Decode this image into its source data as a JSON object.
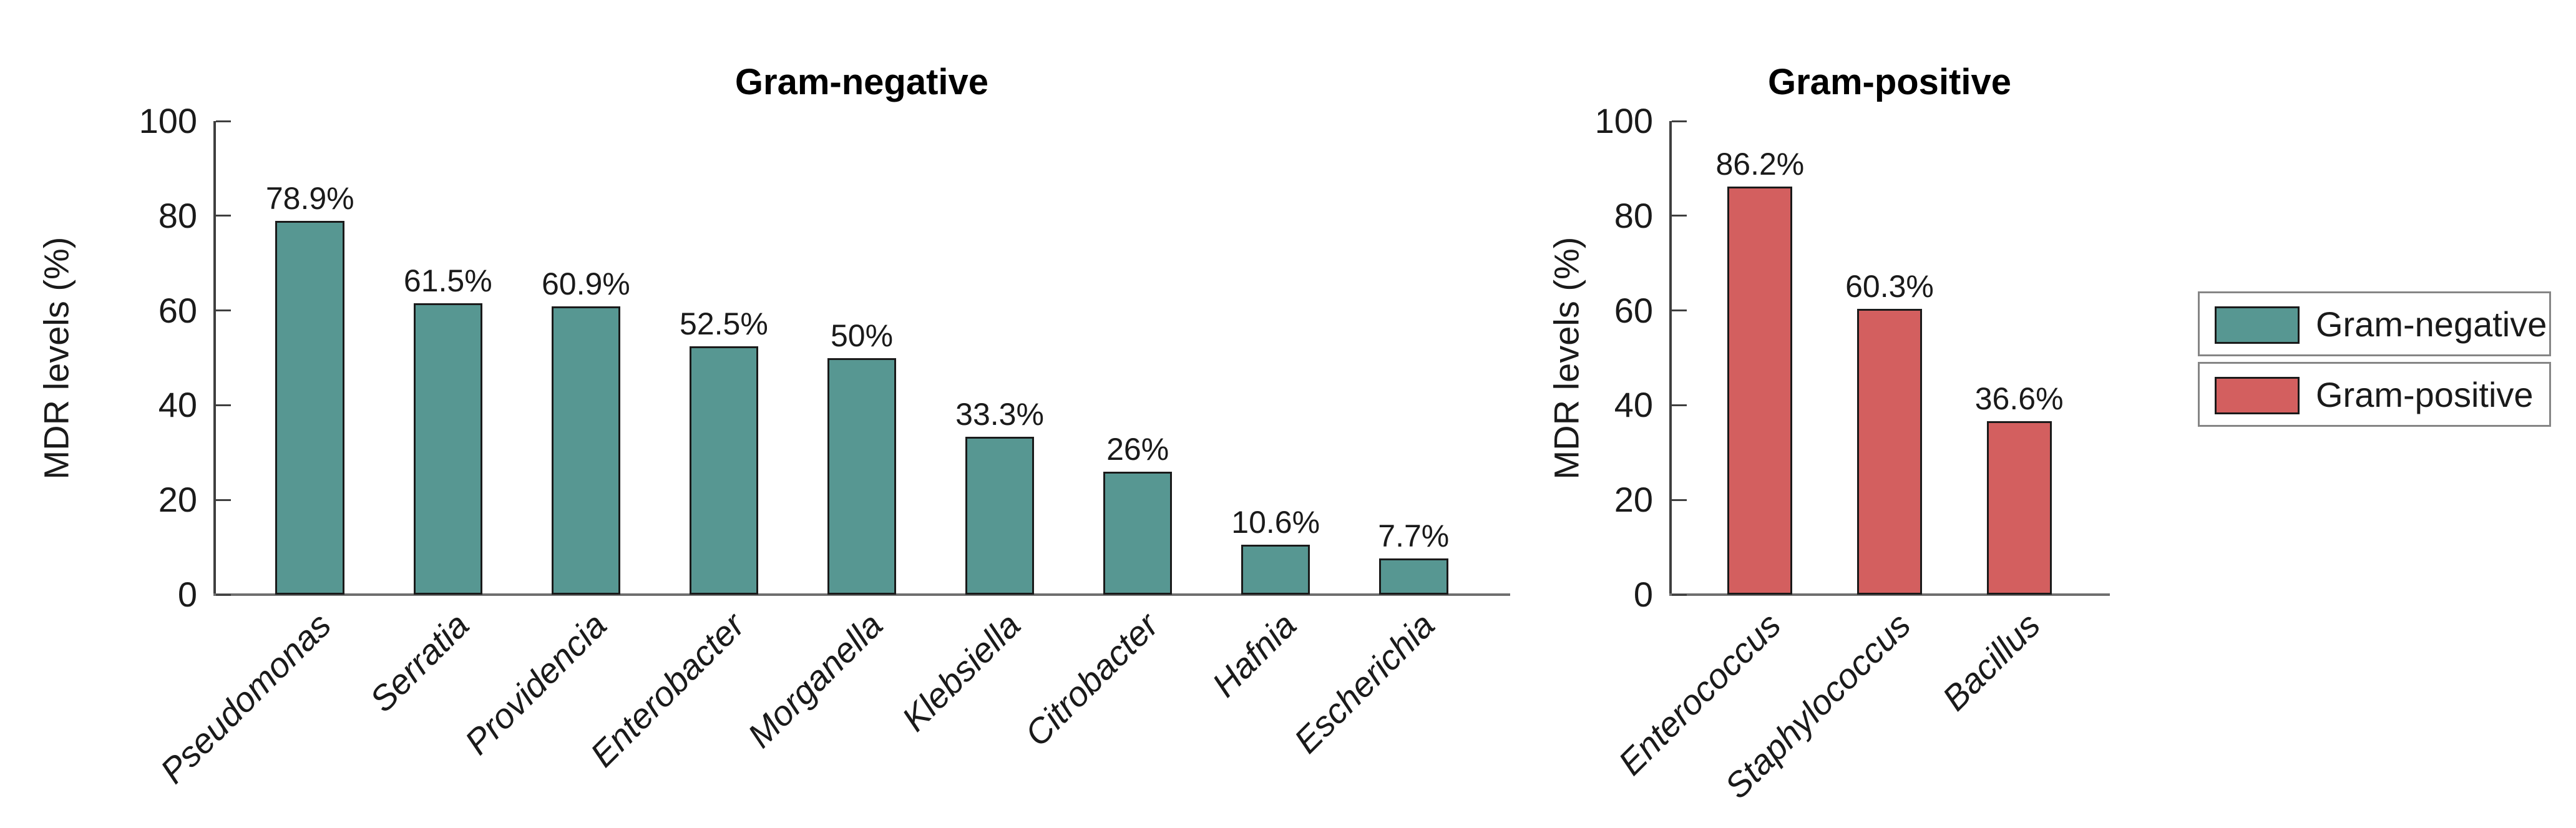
{
  "figure": {
    "background": "#ffffff",
    "axis_spine_color": "#3f3f3f",
    "baseline_color": "#6e6e6e",
    "text_color": "#1a1a1a"
  },
  "chart_data": [
    {
      "type": "bar",
      "title": "Gram-negative",
      "xlabel": "",
      "ylabel": "MDR levels (%)",
      "categories": [
        "Pseudomonas",
        "Serratia",
        "Providencia",
        "Enterobacter",
        "Morganella",
        "Klebsiella",
        "Citrobacter",
        "Hafnia",
        "Escherichia"
      ],
      "values": [
        78.9,
        61.5,
        60.9,
        52.5,
        50,
        33.3,
        26,
        10.6,
        7.7
      ],
      "value_labels": [
        "78.9%",
        "61.5%",
        "60.9%",
        "52.5%",
        "50%",
        "33.3%",
        "26%",
        "10.6%",
        "7.7%"
      ],
      "ylim": [
        0,
        100
      ],
      "yticks": [
        0,
        20,
        40,
        60,
        80,
        100
      ],
      "grid": false,
      "legend_position": "none",
      "bar_color": "#579792",
      "bar_edge_color": "#1a1a1a",
      "category_label_style": "italic, rotated 45deg"
    },
    {
      "type": "bar",
      "title": "Gram-positive",
      "xlabel": "",
      "ylabel": "MDR levels (%)",
      "categories": [
        "Enterococcus",
        "Staphylococcus",
        "Bacillus"
      ],
      "values": [
        86.2,
        60.3,
        36.6
      ],
      "value_labels": [
        "86.2%",
        "60.3%",
        "36.6%"
      ],
      "ylim": [
        0,
        100
      ],
      "yticks": [
        0,
        20,
        40,
        60,
        80,
        100
      ],
      "grid": false,
      "legend_position": "none",
      "bar_color": "#d35f5f",
      "bar_edge_color": "#1a1a1a",
      "category_label_style": "italic, rotated 45deg"
    }
  ],
  "legend": {
    "position": "right-of-charts",
    "entries": [
      {
        "label": "Gram-negative",
        "color": "#579792"
      },
      {
        "label": "Gram-positive",
        "color": "#d35f5f"
      }
    ]
  }
}
